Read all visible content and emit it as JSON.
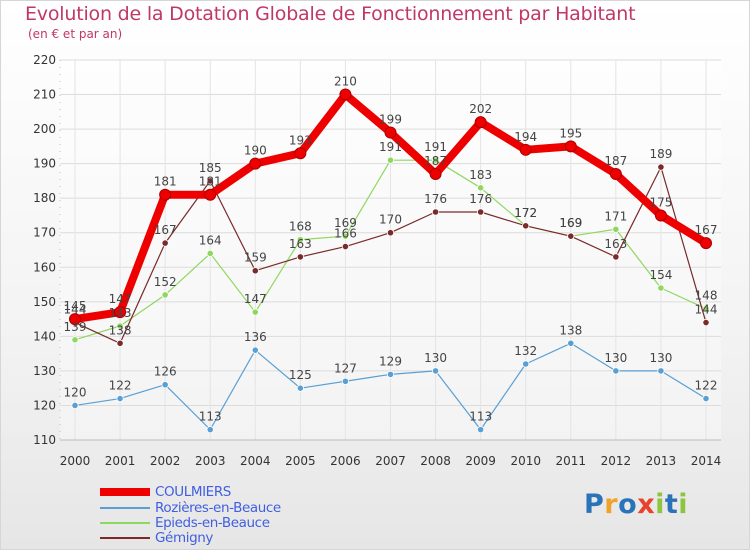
{
  "title": "Evolution de la Dotation Globale de Fonctionnement par Habitant",
  "subtitle": "(en € et par an)",
  "logo": {
    "text": "Proxiti",
    "letters": [
      "P",
      "r",
      "o",
      "x",
      "i",
      "t",
      "i"
    ],
    "colors": [
      "#2a73b8",
      "#f0a22a",
      "#2a73b8",
      "#e8422a",
      "#8cc63f",
      "#2a73b8",
      "#8cc63f"
    ]
  },
  "chart_data": {
    "type": "line",
    "title": "Evolution de la Dotation Globale de Fonctionnement par Habitant",
    "subtitle": "(en € et par an)",
    "xlabel": "",
    "ylabel": "",
    "x": [
      "2000",
      "2001",
      "2002",
      "2003",
      "2004",
      "2005",
      "2006",
      "2007",
      "2008",
      "2009",
      "2010",
      "2011",
      "2012",
      "2013",
      "2014"
    ],
    "ylim": [
      110,
      220
    ],
    "yticks": [
      110,
      120,
      130,
      140,
      150,
      160,
      170,
      180,
      190,
      200,
      210,
      220
    ],
    "grid": true,
    "legend_position": "bottom-left",
    "series": [
      {
        "name": "COULMIERS",
        "color": "#ee0000",
        "values": [
          145,
          147,
          181,
          181,
          190,
          193,
          210,
          199,
          187,
          202,
          194,
          195,
          187,
          175,
          167
        ],
        "labels": [
          "145",
          "147",
          "181",
          "181",
          "190",
          "193",
          "210",
          "199",
          "187",
          "202",
          "194",
          "195",
          "187",
          "175",
          "167"
        ]
      },
      {
        "name": "Rozières-en-Beauce",
        "color": "#5a9fd4",
        "values": [
          120,
          122,
          126,
          113,
          136,
          125,
          127,
          129,
          130,
          113,
          132,
          138,
          130,
          130,
          122
        ],
        "labels": [
          "120",
          "122",
          "126",
          "113",
          "136",
          "125",
          "127",
          "129",
          "130",
          "113",
          "132",
          "138",
          "130",
          "130",
          "122"
        ]
      },
      {
        "name": "Epieds-en-Beauce",
        "color": "#8fd860",
        "values": [
          139,
          143,
          152,
          164,
          147,
          168,
          169,
          191,
          191,
          183,
          172,
          169,
          171,
          154,
          148
        ],
        "labels": [
          "139",
          "143",
          "152",
          "164",
          "147",
          "168",
          "169",
          "191",
          "191",
          "183",
          "172",
          "169",
          "171",
          "154",
          "148"
        ]
      },
      {
        "name": "Gémigny",
        "color": "#7a2a2a",
        "values": [
          144,
          138,
          167,
          185,
          159,
          163,
          166,
          170,
          176,
          176,
          172,
          169,
          163,
          189,
          144
        ],
        "labels": [
          "144",
          "138",
          "167",
          "185",
          "159",
          "163",
          "166",
          "170",
          "176",
          "176",
          "172",
          "169",
          "163",
          "189",
          "144"
        ]
      }
    ]
  }
}
